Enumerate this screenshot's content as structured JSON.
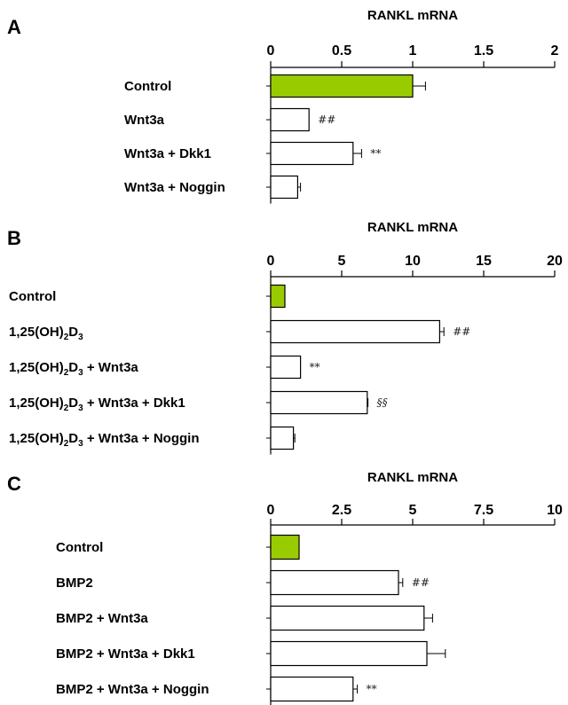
{
  "chart_data": [
    {
      "type": "bar",
      "orientation": "horizontal",
      "panel_label": "A",
      "xlabel": "RANKL mRNA",
      "axis_position": "top",
      "xlim": [
        0,
        2
      ],
      "ticks": [
        0,
        0.5,
        1,
        1.5,
        2
      ],
      "tick_labels": [
        "0",
        "0.5",
        "1",
        "1.5",
        "2"
      ],
      "categories": [
        {
          "text": "Control"
        },
        {
          "text": "Wnt3a"
        },
        {
          "text": "Wnt3a + Dkk1"
        },
        {
          "text": "Wnt3a + Noggin"
        }
      ],
      "values": [
        1.0,
        0.27,
        0.58,
        0.19
      ],
      "errors": [
        0.09,
        0.0,
        0.06,
        0.02
      ],
      "annotations": [
        "",
        "##",
        "**",
        ""
      ],
      "highlight_color": "#99cc00"
    },
    {
      "type": "bar",
      "orientation": "horizontal",
      "panel_label": "B",
      "xlabel": "RANKL mRNA",
      "axis_position": "top",
      "xlim": [
        0,
        20
      ],
      "ticks": [
        0,
        5,
        10,
        15,
        20
      ],
      "tick_labels": [
        "0",
        "5",
        "10",
        "15",
        "20"
      ],
      "categories": [
        {
          "text": "Control"
        },
        {
          "parts": [
            "1,25(OH)",
            "2",
            "D",
            "3"
          ]
        },
        {
          "parts": [
            "1,25(OH)",
            "2",
            "D",
            "3",
            " + Wnt3a"
          ]
        },
        {
          "parts": [
            "1,25(OH)",
            "2",
            "D",
            "3",
            " + Wnt3a + Dkk1"
          ]
        },
        {
          "parts": [
            "1,25(OH)",
            "2",
            "D",
            "3",
            " + Wnt3a + Noggin"
          ]
        }
      ],
      "values": [
        1.0,
        11.9,
        2.1,
        6.8,
        1.6
      ],
      "errors": [
        0.0,
        0.3,
        0.0,
        0.05,
        0.1
      ],
      "annotations": [
        "",
        "##",
        "**",
        "§§",
        ""
      ],
      "highlight_color": "#99cc00"
    },
    {
      "type": "bar",
      "orientation": "horizontal",
      "panel_label": "C",
      "xlabel": "RANKL mRNA",
      "axis_position": "top",
      "xlim": [
        0,
        10
      ],
      "ticks": [
        0,
        2.5,
        5,
        7.5,
        10
      ],
      "tick_labels": [
        "0",
        "2.5",
        "5",
        "7.5",
        "10"
      ],
      "categories": [
        {
          "text": "Control"
        },
        {
          "text": "BMP2"
        },
        {
          "text": "BMP2 + Wnt3a"
        },
        {
          "text": "BMP2 + Wnt3a + Dkk1"
        },
        {
          "text": "BMP2 + Wnt3a + Noggin"
        }
      ],
      "values": [
        1.0,
        4.5,
        5.4,
        5.5,
        2.9
      ],
      "errors": [
        0.0,
        0.15,
        0.3,
        0.65,
        0.15
      ],
      "annotations": [
        "",
        "##",
        "",
        "",
        "**"
      ],
      "highlight_color": "#99cc00"
    }
  ]
}
